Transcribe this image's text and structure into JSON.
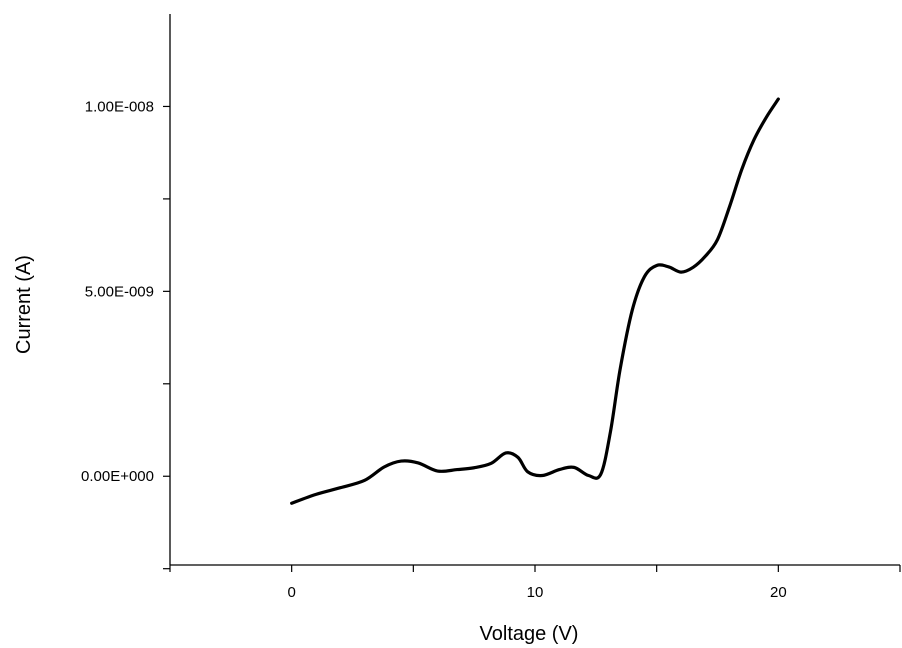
{
  "chart_data": {
    "type": "line",
    "title": "",
    "xlabel": "Voltage (V)",
    "ylabel": "Current (A)",
    "xlim": [
      -5,
      25
    ],
    "ylim": [
      -2.4e-09,
      1.25e-08
    ],
    "x_ticks": [
      {
        "value": -5,
        "label": ""
      },
      {
        "value": 0,
        "label": "0"
      },
      {
        "value": 5,
        "label": ""
      },
      {
        "value": 10,
        "label": "10"
      },
      {
        "value": 15,
        "label": ""
      },
      {
        "value": 20,
        "label": "20"
      },
      {
        "value": 25,
        "label": ""
      }
    ],
    "y_ticks": [
      {
        "value": -2.5e-09,
        "label": ""
      },
      {
        "value": 0,
        "label": "0.00E+000"
      },
      {
        "value": 2.5e-09,
        "label": ""
      },
      {
        "value": 5e-09,
        "label": "5.00E-009"
      },
      {
        "value": 7.5e-09,
        "label": ""
      },
      {
        "value": 1e-08,
        "label": "1.00E-008"
      }
    ],
    "grid": false,
    "legend": "none",
    "line_color": "#000000",
    "series": [
      {
        "x": [
          0,
          1,
          2,
          3,
          3.8,
          4.5,
          5.2,
          6,
          6.8,
          7.5,
          8.2,
          8.8,
          9.3,
          9.7,
          10.3,
          11,
          11.6,
          12.2,
          12.7,
          13.1,
          13.5,
          14,
          14.5,
          15,
          15.5,
          16,
          16.5,
          17,
          17.5,
          18,
          18.5,
          19,
          19.5,
          20
        ],
        "y": [
          -7.3e-10,
          -4.9e-10,
          -3.1e-10,
          -1.1e-10,
          2.5e-10,
          4.1e-10,
          3.6e-10,
          1.4e-10,
          1.8e-10,
          2.3e-10,
          3.5e-10,
          6.3e-10,
          5.1e-10,
          1.2e-10,
          2e-11,
          1.8e-10,
          2.4e-10,
          2e-11,
          5e-11,
          1.2e-09,
          2.9e-09,
          4.5e-09,
          5.4e-09,
          5.7e-09,
          5.66e-09,
          5.52e-09,
          5.65e-09,
          5.95e-09,
          6.4e-09,
          7.3e-09,
          8.3e-09,
          9.1e-09,
          9.7e-09,
          1.02e-08
        ]
      }
    ]
  }
}
